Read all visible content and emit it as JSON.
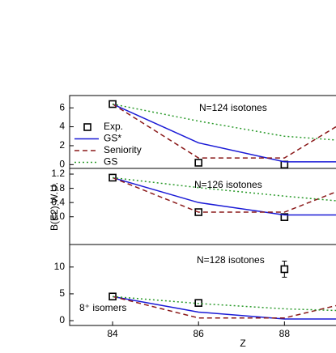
{
  "chart_data": [
    {
      "type": "line",
      "x": [
        84,
        86,
        88,
        89.2
      ],
      "xlim": [
        83,
        89.2
      ],
      "ylim": [
        -0.4,
        7.3
      ],
      "yticks": [
        0,
        2,
        4,
        6
      ],
      "annotations": [
        "N=124 isotones"
      ],
      "legend": "upper left",
      "series": [
        {
          "name": "Exp.",
          "color": "#000000",
          "marker": "square",
          "values": [
            6.4,
            0.2,
            0.0,
            null
          ]
        },
        {
          "name": "GS*",
          "color": "#1a1ad6",
          "linestyle": "solid",
          "values": [
            6.4,
            2.3,
            0.3,
            0.3
          ]
        },
        {
          "name": "Seniority",
          "color": "#8b1a1a",
          "linestyle": "dashed",
          "values": [
            6.4,
            0.7,
            0.7,
            4.0
          ]
        },
        {
          "name": "GS",
          "color": "#2a9a2a",
          "linestyle": "dotted",
          "values": [
            6.4,
            4.6,
            3.0,
            2.6
          ]
        }
      ]
    },
    {
      "type": "line",
      "x": [
        84,
        86,
        88,
        89.2
      ],
      "xlim": [
        83,
        89.2
      ],
      "ylim": [
        -0.78,
        1.36
      ],
      "yticks": [
        {
          "value": 0,
          "label": "0.0"
        },
        {
          "value": 0.4,
          "label": "0.4"
        },
        {
          "value": 0.8,
          "label": "0.8"
        },
        {
          "value": 1.2,
          "label": "1.2"
        }
      ],
      "ylabel": "B(E2) W.U.",
      "annotations": [
        "N=126 isotones"
      ],
      "series": [
        {
          "color": "#000000",
          "marker": "square",
          "values": [
            1.1,
            0.13,
            -0.01,
            null
          ]
        },
        {
          "color": "#1a1ad6",
          "linestyle": "solid",
          "values": [
            1.1,
            0.4,
            0.05,
            0.05
          ]
        },
        {
          "color": "#8b1a1a",
          "linestyle": "dashed",
          "values": [
            1.1,
            0.13,
            0.13,
            0.7
          ]
        },
        {
          "color": "#2a9a2a",
          "linestyle": "dotted",
          "values": [
            1.1,
            0.82,
            0.58,
            0.45
          ]
        }
      ]
    },
    {
      "type": "line",
      "x": [
        84,
        86,
        88,
        89.2
      ],
      "xlim": [
        83,
        89.2
      ],
      "ylim": [
        -0.9,
        14.2
      ],
      "yticks": [
        0,
        5,
        10
      ],
      "xticks": [
        84,
        86,
        88
      ],
      "xlabel": "Z",
      "annotations": [
        "N=128 isotones",
        "8⁺ isomers"
      ],
      "series": [
        {
          "color": "#000000",
          "marker": "square",
          "values": [
            4.5,
            3.3,
            9.6,
            null
          ],
          "errors": [
            null,
            null,
            1.5,
            null
          ]
        },
        {
          "color": "#1a1ad6",
          "linestyle": "solid",
          "values": [
            4.5,
            1.6,
            0.3,
            0.3
          ]
        },
        {
          "color": "#8b1a1a",
          "linestyle": "dashed",
          "values": [
            4.5,
            0.5,
            0.5,
            2.8
          ]
        },
        {
          "color": "#2a9a2a",
          "linestyle": "dotted",
          "values": [
            4.5,
            3.2,
            2.2,
            1.9
          ]
        }
      ]
    }
  ]
}
